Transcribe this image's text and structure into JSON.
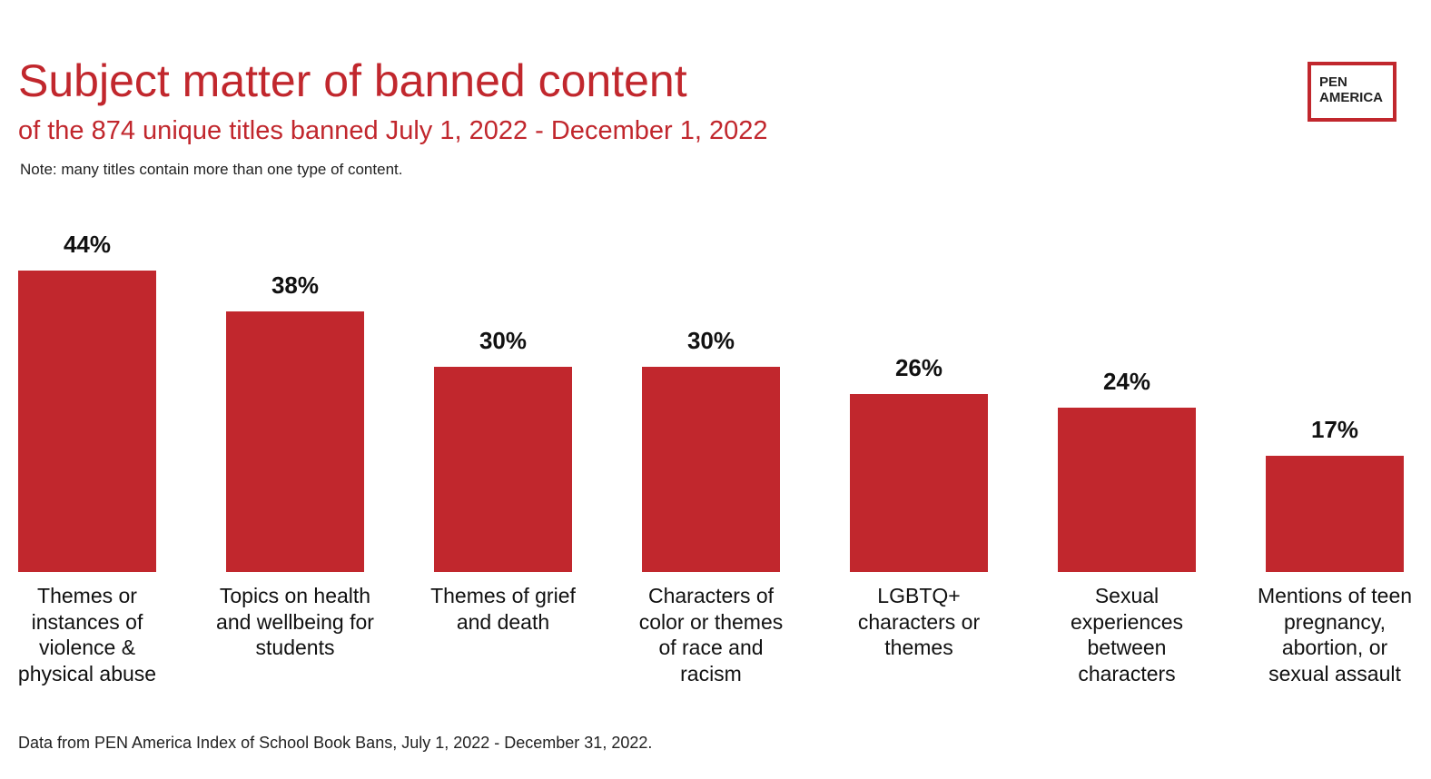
{
  "chart_data": {
    "type": "bar",
    "title": "Subject matter of banned content",
    "subtitle": "of the 874 unique titles banned July 1, 2022 - December 1, 2022",
    "note": "Note: many titles contain more than one type of content.",
    "source": "Data from PEN America Index of School Book Bans, July 1, 2022 - December 31, 2022.",
    "categories": [
      "Themes or instances of violence & physical abuse",
      "Topics on health and wellbeing for students",
      "Themes of grief and death",
      "Characters of color or themes of race and racism",
      "LGBTQ+ characters or themes",
      "Sexual experiences between characters",
      "Mentions of teen pregnancy, abortion, or sexual assault"
    ],
    "values": [
      44,
      38,
      30,
      30,
      26,
      24,
      17
    ],
    "value_labels": [
      "44%",
      "38%",
      "30%",
      "30%",
      "26%",
      "24%",
      "17%"
    ],
    "color": "#c1272d"
  },
  "logo": {
    "lines": [
      "PEN",
      "AMERICA"
    ]
  }
}
